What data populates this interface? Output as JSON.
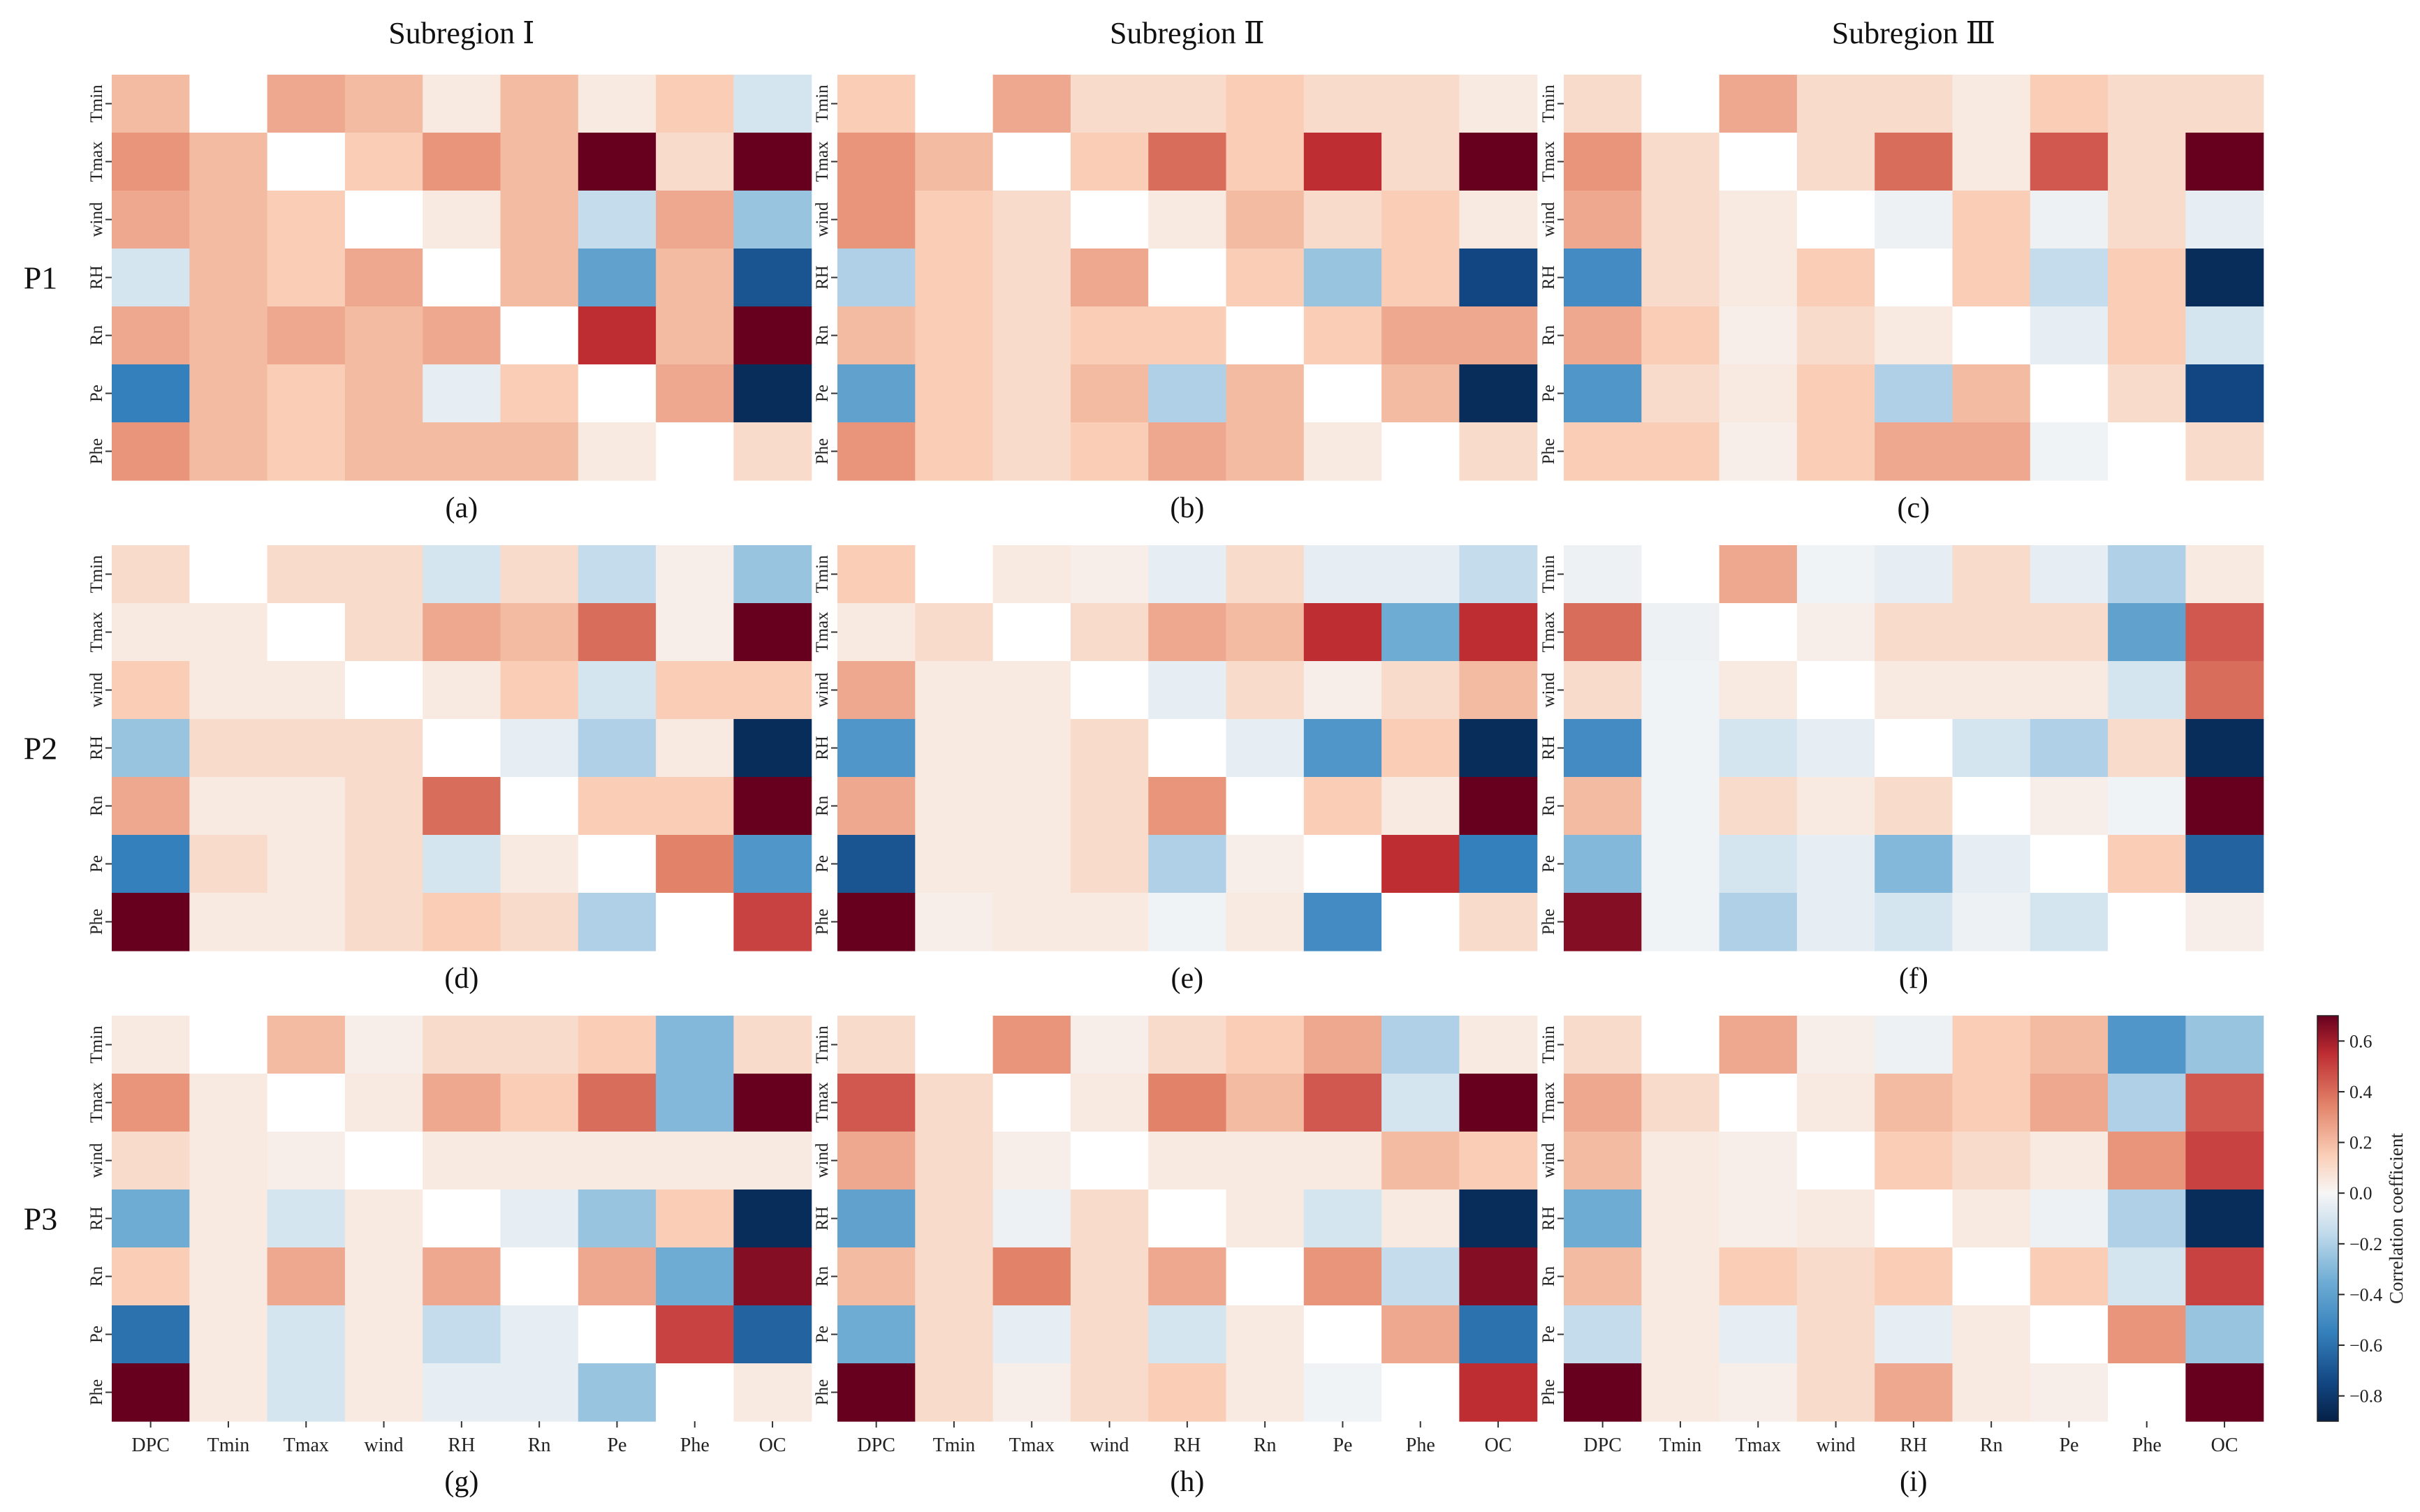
{
  "figure": {
    "column_titles": [
      "Subregion Ⅰ",
      "Subregion Ⅱ",
      "Subregion Ⅲ"
    ],
    "row_labels": [
      "P1",
      "P2",
      "P3"
    ],
    "panel_labels": [
      "(a)",
      "(b)",
      "(c)",
      "(d)",
      "(e)",
      "(f)",
      "(g)",
      "(h)",
      "(i)"
    ]
  },
  "colorbar": {
    "label": "Correlation coefficient",
    "min": -0.9,
    "max": 0.7,
    "ticks": [
      0.6,
      0.4,
      0.2,
      0.0,
      -0.2,
      -0.4,
      -0.6,
      -0.8
    ],
    "tick_labels": [
      "0.6",
      "0.4",
      "0.2",
      "0.0",
      "−0.2",
      "−0.4",
      "−0.6",
      "−0.8"
    ]
  },
  "chart_data": {
    "type": "heatmap",
    "title": "",
    "value_label": "Correlation coefficient",
    "x_categories": [
      "DPC",
      "Tmin",
      "Tmax",
      "wind",
      "RH",
      "Rn",
      "Pe",
      "Phe",
      "OC"
    ],
    "y_categories": [
      "Tmin",
      "Tmax",
      "wind",
      "RH",
      "Rn",
      "Pe",
      "Phe"
    ],
    "panels": [
      {
        "id": "(a)",
        "subregion": "Subregion Ⅰ",
        "period": "P1",
        "values": [
          [
            0.2,
            null,
            0.25,
            0.2,
            0.05,
            0.2,
            0.05,
            0.15,
            -0.1
          ],
          [
            0.3,
            0.2,
            null,
            0.15,
            0.3,
            0.2,
            0.75,
            0.1,
            0.85
          ],
          [
            0.25,
            0.2,
            0.15,
            null,
            0.05,
            0.2,
            -0.15,
            0.25,
            -0.25
          ],
          [
            -0.1,
            0.2,
            0.15,
            0.25,
            null,
            0.2,
            -0.4,
            0.2,
            -0.7
          ],
          [
            0.25,
            0.2,
            0.25,
            0.2,
            0.25,
            null,
            0.55,
            0.2,
            0.75
          ],
          [
            -0.55,
            0.2,
            0.15,
            0.2,
            -0.05,
            0.15,
            null,
            0.25,
            -0.85
          ],
          [
            0.3,
            0.2,
            0.15,
            0.2,
            0.2,
            0.2,
            0.05,
            null,
            0.1
          ]
        ]
      },
      {
        "id": "(b)",
        "subregion": "Subregion Ⅱ",
        "period": "P1",
        "values": [
          [
            0.15,
            null,
            0.25,
            0.1,
            0.1,
            0.15,
            0.1,
            0.1,
            0.05
          ],
          [
            0.3,
            0.2,
            null,
            0.15,
            0.4,
            0.15,
            0.55,
            0.1,
            0.85
          ],
          [
            0.3,
            0.15,
            0.1,
            null,
            0.05,
            0.2,
            0.1,
            0.15,
            0.05
          ],
          [
            -0.2,
            0.15,
            0.1,
            0.25,
            null,
            0.15,
            -0.25,
            0.15,
            -0.75
          ],
          [
            0.2,
            0.15,
            0.1,
            0.15,
            0.15,
            null,
            0.15,
            0.25,
            0.25
          ],
          [
            -0.4,
            0.15,
            0.1,
            0.2,
            -0.2,
            0.2,
            null,
            0.2,
            -0.85
          ],
          [
            0.3,
            0.15,
            0.1,
            0.15,
            0.25,
            0.2,
            0.05,
            null,
            0.1
          ]
        ]
      },
      {
        "id": "(c)",
        "subregion": "Subregion Ⅲ",
        "period": "P1",
        "values": [
          [
            0.1,
            null,
            0.25,
            0.1,
            0.1,
            0.05,
            0.15,
            0.1,
            0.1
          ],
          [
            0.3,
            0.1,
            null,
            0.1,
            0.4,
            0.05,
            0.45,
            0.1,
            0.85
          ],
          [
            0.25,
            0.1,
            0.05,
            null,
            -0.03,
            0.15,
            -0.03,
            0.1,
            -0.05
          ],
          [
            -0.5,
            0.1,
            0.05,
            0.15,
            null,
            0.15,
            -0.15,
            0.15,
            -0.85
          ],
          [
            0.25,
            0.15,
            0.03,
            0.1,
            0.05,
            null,
            -0.05,
            0.15,
            -0.1
          ],
          [
            -0.45,
            0.1,
            0.05,
            0.15,
            -0.2,
            0.2,
            null,
            0.1,
            -0.75
          ],
          [
            0.15,
            0.15,
            0.03,
            0.15,
            0.25,
            0.25,
            -0.02,
            null,
            0.1
          ]
        ]
      },
      {
        "id": "(d)",
        "subregion": "Subregion Ⅰ",
        "period": "P2",
        "values": [
          [
            0.1,
            null,
            0.1,
            0.1,
            -0.1,
            0.1,
            -0.15,
            0.03,
            -0.25
          ],
          [
            0.05,
            0.05,
            null,
            0.1,
            0.25,
            0.2,
            0.4,
            0.03,
            0.75
          ],
          [
            0.15,
            0.05,
            0.05,
            null,
            0.05,
            0.15,
            -0.1,
            0.15,
            0.15
          ],
          [
            -0.25,
            0.1,
            0.1,
            0.1,
            null,
            -0.05,
            -0.2,
            0.05,
            -0.85
          ],
          [
            0.25,
            0.05,
            0.05,
            0.1,
            0.4,
            null,
            0.15,
            0.15,
            0.85
          ],
          [
            -0.55,
            0.1,
            0.05,
            0.1,
            -0.1,
            0.05,
            null,
            0.35,
            -0.45
          ],
          [
            0.85,
            0.05,
            0.05,
            0.1,
            0.15,
            0.1,
            -0.2,
            null,
            0.5
          ]
        ]
      },
      {
        "id": "(e)",
        "subregion": "Subregion Ⅱ",
        "period": "P2",
        "values": [
          [
            0.15,
            null,
            0.05,
            0.03,
            -0.05,
            0.1,
            -0.05,
            -0.05,
            -0.15
          ],
          [
            0.05,
            0.1,
            null,
            0.1,
            0.25,
            0.2,
            0.55,
            -0.35,
            0.55
          ],
          [
            0.25,
            0.05,
            0.05,
            null,
            -0.05,
            0.1,
            0.03,
            0.1,
            0.2
          ],
          [
            -0.45,
            0.05,
            0.05,
            0.1,
            null,
            -0.05,
            -0.45,
            0.15,
            -0.85
          ],
          [
            0.25,
            0.05,
            0.05,
            0.1,
            0.3,
            null,
            0.15,
            0.05,
            0.85
          ],
          [
            -0.7,
            0.05,
            0.05,
            0.1,
            -0.2,
            0.03,
            null,
            0.55,
            -0.55
          ],
          [
            0.85,
            0.03,
            0.05,
            0.05,
            -0.02,
            0.05,
            -0.5,
            null,
            0.1
          ]
        ]
      },
      {
        "id": "(f)",
        "subregion": "Subregion Ⅲ",
        "period": "P2",
        "values": [
          [
            -0.03,
            null,
            0.25,
            -0.02,
            -0.05,
            0.1,
            -0.05,
            -0.2,
            0.05
          ],
          [
            0.4,
            -0.03,
            null,
            0.03,
            0.1,
            0.1,
            0.1,
            -0.4,
            0.45
          ],
          [
            0.1,
            -0.02,
            0.05,
            null,
            0.05,
            0.05,
            0.05,
            -0.1,
            0.4
          ],
          [
            -0.5,
            -0.02,
            -0.1,
            -0.05,
            null,
            -0.1,
            -0.2,
            0.1,
            -0.85
          ],
          [
            0.2,
            -0.02,
            0.1,
            0.05,
            0.1,
            null,
            0.03,
            -0.02,
            0.85
          ],
          [
            -0.3,
            -0.02,
            -0.1,
            -0.05,
            -0.3,
            -0.05,
            null,
            0.15,
            -0.65
          ],
          [
            0.65,
            -0.02,
            -0.2,
            -0.05,
            -0.1,
            -0.03,
            -0.1,
            null,
            0.03
          ]
        ]
      },
      {
        "id": "(g)",
        "subregion": "Subregion Ⅰ",
        "period": "P3",
        "values": [
          [
            0.05,
            null,
            0.2,
            0.03,
            0.1,
            0.1,
            0.15,
            -0.3,
            0.1
          ],
          [
            0.3,
            0.05,
            null,
            0.05,
            0.25,
            0.15,
            0.4,
            -0.3,
            0.85
          ],
          [
            0.1,
            0.05,
            0.03,
            null,
            0.05,
            0.05,
            0.05,
            0.05,
            0.05
          ],
          [
            -0.35,
            0.05,
            -0.1,
            0.05,
            null,
            -0.05,
            -0.25,
            0.15,
            -0.85
          ],
          [
            0.15,
            0.05,
            0.25,
            0.05,
            0.25,
            null,
            0.25,
            -0.35,
            0.65
          ],
          [
            -0.6,
            0.05,
            -0.1,
            0.05,
            -0.15,
            -0.05,
            null,
            0.5,
            -0.65
          ],
          [
            0.85,
            0.05,
            -0.1,
            0.05,
            -0.05,
            -0.05,
            -0.25,
            null,
            0.05
          ]
        ]
      },
      {
        "id": "(h)",
        "subregion": "Subregion Ⅱ",
        "period": "P3",
        "values": [
          [
            0.1,
            null,
            0.3,
            0.03,
            0.1,
            0.15,
            0.25,
            -0.2,
            0.05
          ],
          [
            0.45,
            0.1,
            null,
            0.05,
            0.35,
            0.2,
            0.45,
            -0.1,
            0.85
          ],
          [
            0.25,
            0.1,
            0.03,
            null,
            0.05,
            0.05,
            0.05,
            0.2,
            0.15
          ],
          [
            -0.4,
            0.1,
            -0.03,
            0.1,
            null,
            0.05,
            -0.1,
            0.05,
            -0.85
          ],
          [
            0.2,
            0.1,
            0.35,
            0.1,
            0.25,
            null,
            0.3,
            -0.15,
            0.65
          ],
          [
            -0.35,
            0.1,
            -0.05,
            0.1,
            -0.1,
            0.05,
            null,
            0.25,
            -0.6
          ],
          [
            0.85,
            0.1,
            0.03,
            0.1,
            0.15,
            0.05,
            -0.02,
            null,
            0.55
          ]
        ]
      },
      {
        "id": "(i)",
        "subregion": "Subregion Ⅲ",
        "period": "P3",
        "values": [
          [
            0.1,
            null,
            0.25,
            0.03,
            -0.03,
            0.15,
            0.2,
            -0.45,
            -0.25
          ],
          [
            0.25,
            0.1,
            null,
            0.05,
            0.2,
            0.15,
            0.25,
            -0.2,
            0.45
          ],
          [
            0.2,
            0.05,
            0.03,
            null,
            0.15,
            0.1,
            0.05,
            0.3,
            0.5
          ],
          [
            -0.35,
            0.05,
            0.03,
            0.05,
            null,
            0.05,
            -0.03,
            -0.2,
            -0.85
          ],
          [
            0.2,
            0.05,
            0.15,
            0.1,
            0.15,
            null,
            0.15,
            -0.1,
            0.5
          ],
          [
            -0.15,
            0.05,
            -0.05,
            0.1,
            -0.05,
            0.05,
            null,
            0.3,
            -0.25
          ],
          [
            0.85,
            0.05,
            0.03,
            0.1,
            0.25,
            0.05,
            0.03,
            null,
            0.85
          ]
        ]
      }
    ]
  }
}
